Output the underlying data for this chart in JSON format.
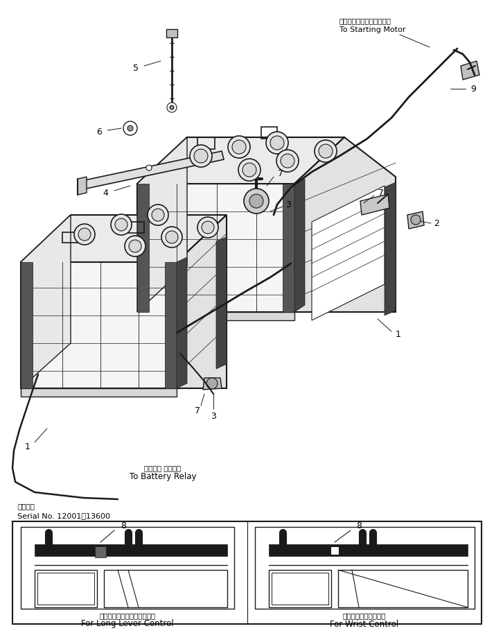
{
  "bg_color": "#ffffff",
  "line_color": "#1a1a1a",
  "title_top_jp": "スターティングモーター～",
  "title_top_en": "To Starting Motor",
  "label_battery_relay_jp": "バッテリ リレーへ",
  "label_battery_relay_en": "To Battery Relay",
  "serial_jp": "適用番号",
  "serial_en": "Serial No. 12001～13600",
  "left_label_jp": "ロングレバーコントロール用",
  "left_label_en": "For Long Lever Control",
  "right_label_jp": "リストコントロール用",
  "right_label_en": "For Wrist Control",
  "figsize": [
    7.13,
    9.13
  ],
  "dpi": 100
}
